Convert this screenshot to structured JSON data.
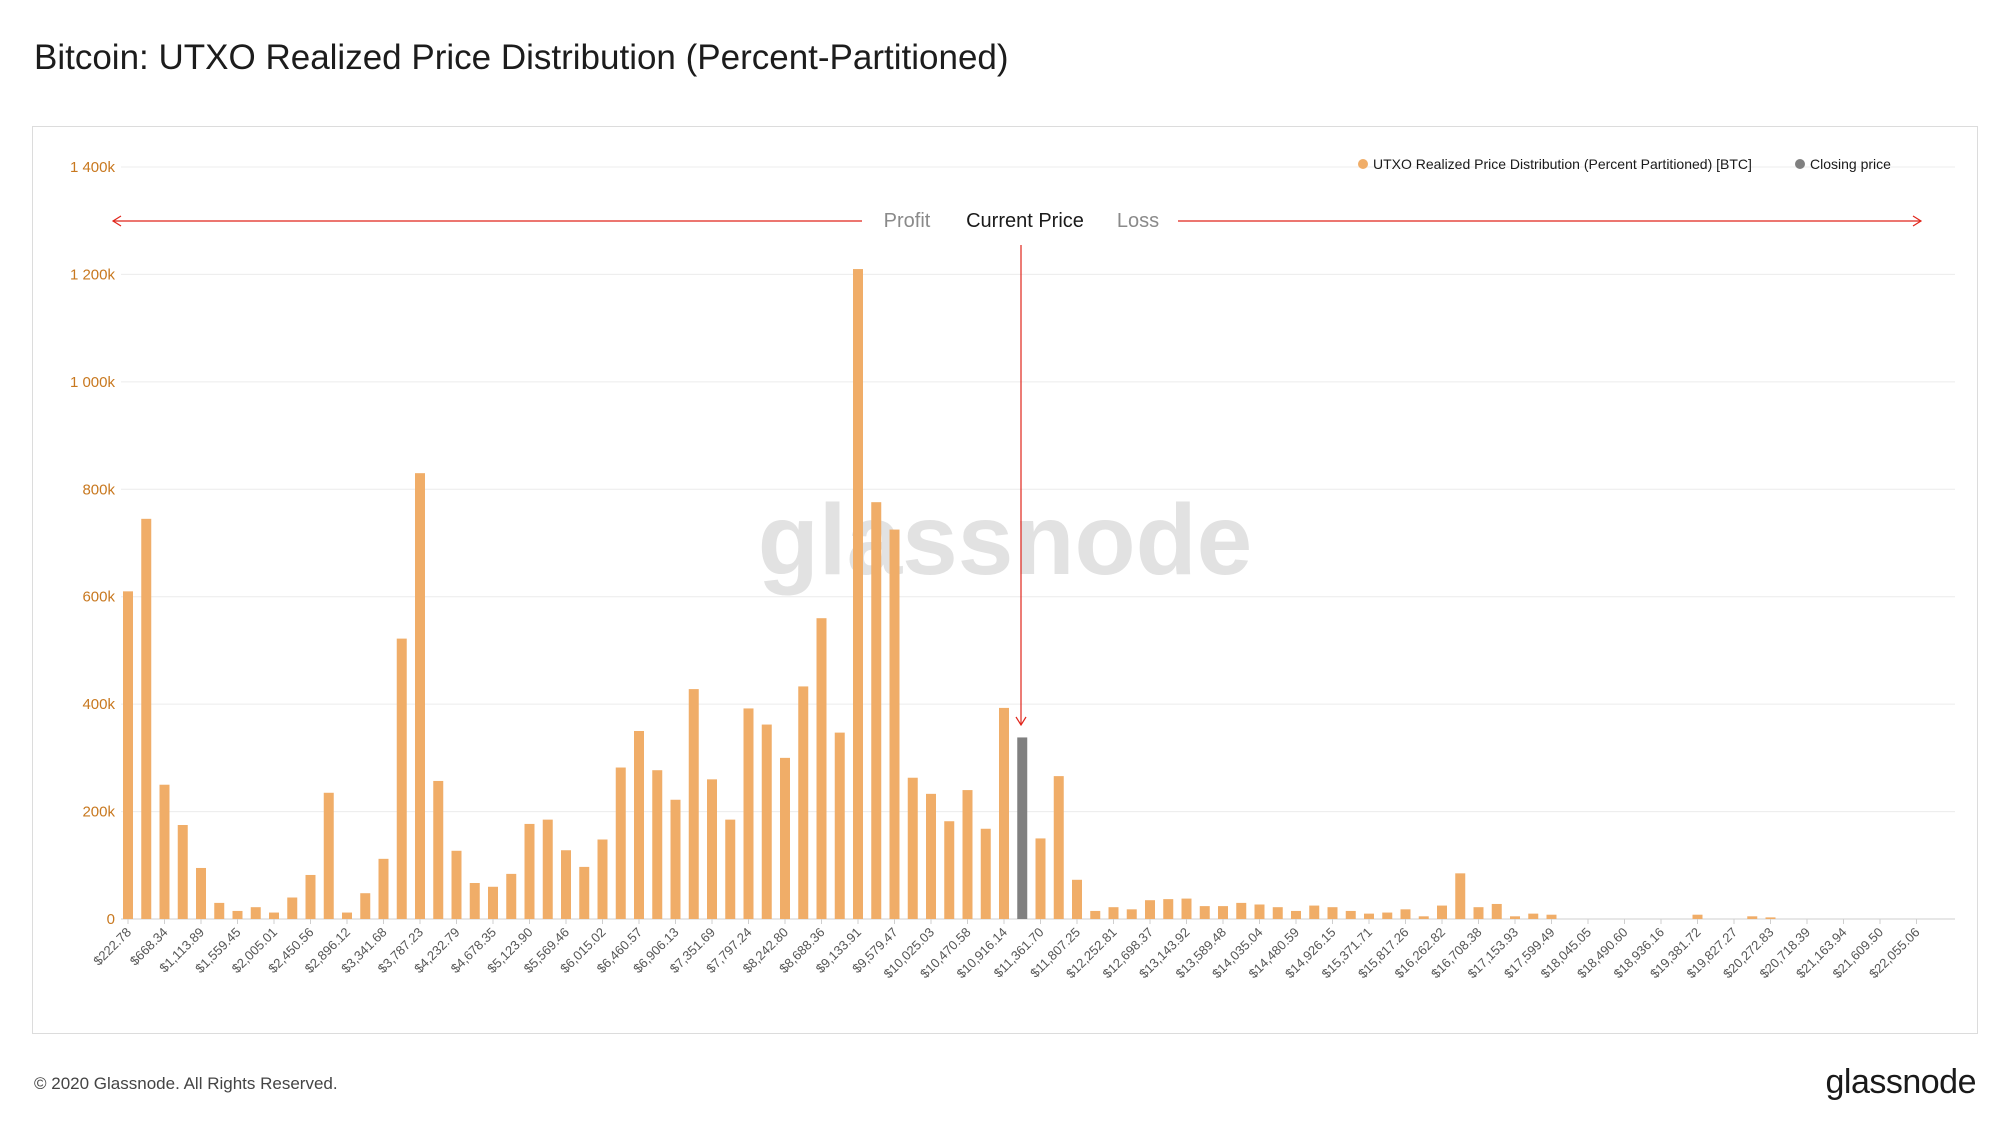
{
  "title": "Bitcoin: UTXO Realized Price Distribution (Percent-Partitioned)",
  "footer": {
    "copyright": "© 2020 Glassnode. All Rights Reserved.",
    "logo": "glassnode"
  },
  "watermark": "glassnode",
  "annotations": {
    "profit": "Profit",
    "current": "Current Price",
    "loss": "Loss"
  },
  "colors": {
    "bar": "#f0ad68",
    "closing": "#808080",
    "axis": "#c8781f",
    "arrow": "#e0251b",
    "grid": "#ececec"
  },
  "chart_data": {
    "type": "bar",
    "title": "Bitcoin: UTXO Realized Price Distribution (Percent-Partitioned)",
    "xlabel": "",
    "ylabel": "",
    "ylim": [
      0,
      1400000
    ],
    "yticks": [
      {
        "value": 0,
        "label": "0"
      },
      {
        "value": 200000,
        "label": "200k"
      },
      {
        "value": 400000,
        "label": "400k"
      },
      {
        "value": 600000,
        "label": "600k"
      },
      {
        "value": 800000,
        "label": "800k"
      },
      {
        "value": 1000000,
        "label": "1 000k"
      },
      {
        "value": 1200000,
        "label": "1 200k"
      },
      {
        "value": 1400000,
        "label": "1 400k"
      }
    ],
    "xtick_labels": [
      "$222.78",
      "$668.34",
      "$1,113.89",
      "$1,559.45",
      "$2,005.01",
      "$2,450.56",
      "$2,896.12",
      "$3,341.68",
      "$3,787.23",
      "$4,232.79",
      "$4,678.35",
      "$5,123.90",
      "$5,569.46",
      "$6,015.02",
      "$6,460.57",
      "$6,906.13",
      "$7,351.69",
      "$7,797.24",
      "$8,242.80",
      "$8,688.36",
      "$9,133.91",
      "$9,579.47",
      "$10,025.03",
      "$10,470.58",
      "$10,916.14",
      "$11,361.70",
      "$11,807.25",
      "$12,252.81",
      "$12,698.37",
      "$13,143.92",
      "$13,589.48",
      "$14,035.04",
      "$14,480.59",
      "$14,926.15",
      "$15,371.71",
      "$15,817.26",
      "$16,262.82",
      "$16,708.38",
      "$17,153.93",
      "$17,599.49",
      "$18,045.05",
      "$18,490.60",
      "$18,936.16",
      "$19,381.72",
      "$19,827.27",
      "$20,272.83",
      "$20,718.39",
      "$21,163.94",
      "$21,609.50",
      "$22,055.06"
    ],
    "legend": [
      {
        "label": "UTXO Realized Price Distribution (Percent Partitioned) [BTC]",
        "color": "#f0ad68"
      },
      {
        "label": "Closing price",
        "color": "#808080"
      }
    ],
    "legend_position": "top-right",
    "closing_price_bar_index": 49,
    "values": [
      610000,
      745000,
      250000,
      175000,
      95000,
      30000,
      15000,
      22000,
      12000,
      40000,
      82000,
      235000,
      12000,
      48000,
      112000,
      522000,
      830000,
      257000,
      127000,
      67000,
      60000,
      84000,
      177000,
      185000,
      128000,
      97000,
      148000,
      282000,
      350000,
      277000,
      222000,
      428000,
      260000,
      185000,
      392000,
      362000,
      300000,
      433000,
      560000,
      347000,
      1210000,
      776000,
      725000,
      263000,
      233000,
      182000,
      240000,
      168000,
      393000,
      338000,
      150000,
      266000,
      73000,
      15000,
      22000,
      18000,
      35000,
      37000,
      38000,
      24000,
      24000,
      30000,
      27000,
      22000,
      15000,
      25000,
      22000,
      15000,
      10000,
      12000,
      18000,
      5000,
      25000,
      85000,
      22000,
      28000,
      5000,
      10000,
      8000,
      0,
      0,
      0,
      0,
      0,
      0,
      0,
      8000,
      0,
      0,
      5000,
      3000,
      0,
      0,
      0,
      0,
      0,
      0,
      0,
      0,
      0
    ]
  }
}
